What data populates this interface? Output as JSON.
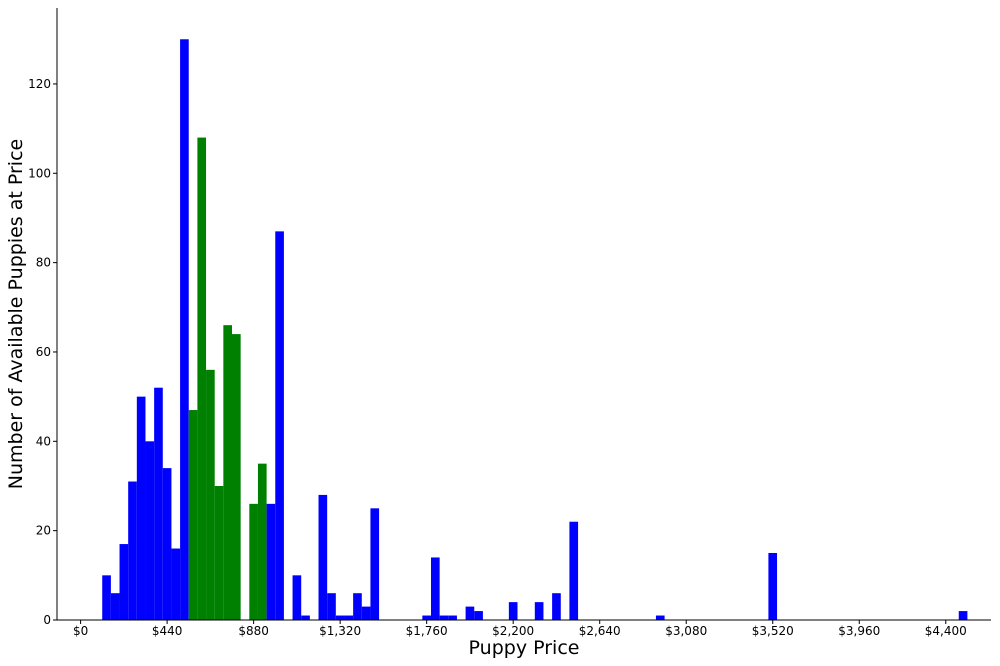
{
  "chart_data": {
    "type": "bar",
    "title": "",
    "xlabel": "Puppy Price",
    "ylabel": "Number of Available Puppies at Price",
    "xlim": [
      -120,
      4630
    ],
    "ylim": [
      0,
      137
    ],
    "bin_width": 44,
    "grid": false,
    "x_ticks": [
      {
        "value": 0,
        "label": "$0"
      },
      {
        "value": 440,
        "label": "$440"
      },
      {
        "value": 880,
        "label": "$880"
      },
      {
        "value": 1320,
        "label": "$1,320"
      },
      {
        "value": 1760,
        "label": "$1,760"
      },
      {
        "value": 2200,
        "label": "$2,200"
      },
      {
        "value": 2640,
        "label": "$2,640"
      },
      {
        "value": 3080,
        "label": "$3,080"
      },
      {
        "value": 3520,
        "label": "$3,520"
      },
      {
        "value": 3960,
        "label": "$3,960"
      },
      {
        "value": 4400,
        "label": "$4,400"
      }
    ],
    "y_ticks": [
      0,
      20,
      40,
      60,
      80,
      100,
      120
    ],
    "colors": {
      "blue": "#0000ff",
      "green": "#008000"
    },
    "bars": [
      {
        "x": 110,
        "value": 10,
        "color": "blue"
      },
      {
        "x": 154,
        "value": 6,
        "color": "blue"
      },
      {
        "x": 198,
        "value": 17,
        "color": "blue"
      },
      {
        "x": 242,
        "value": 31,
        "color": "blue"
      },
      {
        "x": 286,
        "value": 50,
        "color": "blue"
      },
      {
        "x": 330,
        "value": 40,
        "color": "blue"
      },
      {
        "x": 374,
        "value": 52,
        "color": "blue"
      },
      {
        "x": 418,
        "value": 34,
        "color": "blue"
      },
      {
        "x": 462,
        "value": 16,
        "color": "blue"
      },
      {
        "x": 506,
        "value": 130,
        "color": "blue"
      },
      {
        "x": 550,
        "value": 47,
        "color": "green"
      },
      {
        "x": 594,
        "value": 108,
        "color": "green"
      },
      {
        "x": 638,
        "value": 56,
        "color": "green"
      },
      {
        "x": 682,
        "value": 30,
        "color": "green"
      },
      {
        "x": 726,
        "value": 66,
        "color": "green"
      },
      {
        "x": 770,
        "value": 64,
        "color": "green"
      },
      {
        "x": 858,
        "value": 26,
        "color": "green"
      },
      {
        "x": 902,
        "value": 35,
        "color": "green"
      },
      {
        "x": 946,
        "value": 26,
        "color": "blue"
      },
      {
        "x": 990,
        "value": 87,
        "color": "blue"
      },
      {
        "x": 1078,
        "value": 10,
        "color": "blue"
      },
      {
        "x": 1122,
        "value": 1,
        "color": "blue"
      },
      {
        "x": 1210,
        "value": 28,
        "color": "blue"
      },
      {
        "x": 1254,
        "value": 6,
        "color": "blue"
      },
      {
        "x": 1298,
        "value": 1,
        "color": "blue"
      },
      {
        "x": 1342,
        "value": 1,
        "color": "blue"
      },
      {
        "x": 1386,
        "value": 6,
        "color": "blue"
      },
      {
        "x": 1430,
        "value": 3,
        "color": "blue"
      },
      {
        "x": 1474,
        "value": 25,
        "color": "blue"
      },
      {
        "x": 1738,
        "value": 1,
        "color": "blue"
      },
      {
        "x": 1782,
        "value": 14,
        "color": "blue"
      },
      {
        "x": 1826,
        "value": 1,
        "color": "blue"
      },
      {
        "x": 1870,
        "value": 1,
        "color": "blue"
      },
      {
        "x": 1958,
        "value": 3,
        "color": "blue"
      },
      {
        "x": 2002,
        "value": 2,
        "color": "blue"
      },
      {
        "x": 2178,
        "value": 4,
        "color": "blue"
      },
      {
        "x": 2310,
        "value": 4,
        "color": "blue"
      },
      {
        "x": 2398,
        "value": 6,
        "color": "blue"
      },
      {
        "x": 2486,
        "value": 22,
        "color": "blue"
      },
      {
        "x": 2926,
        "value": 1,
        "color": "blue"
      },
      {
        "x": 3498,
        "value": 15,
        "color": "blue"
      },
      {
        "x": 4466,
        "value": 2,
        "color": "blue"
      }
    ]
  }
}
